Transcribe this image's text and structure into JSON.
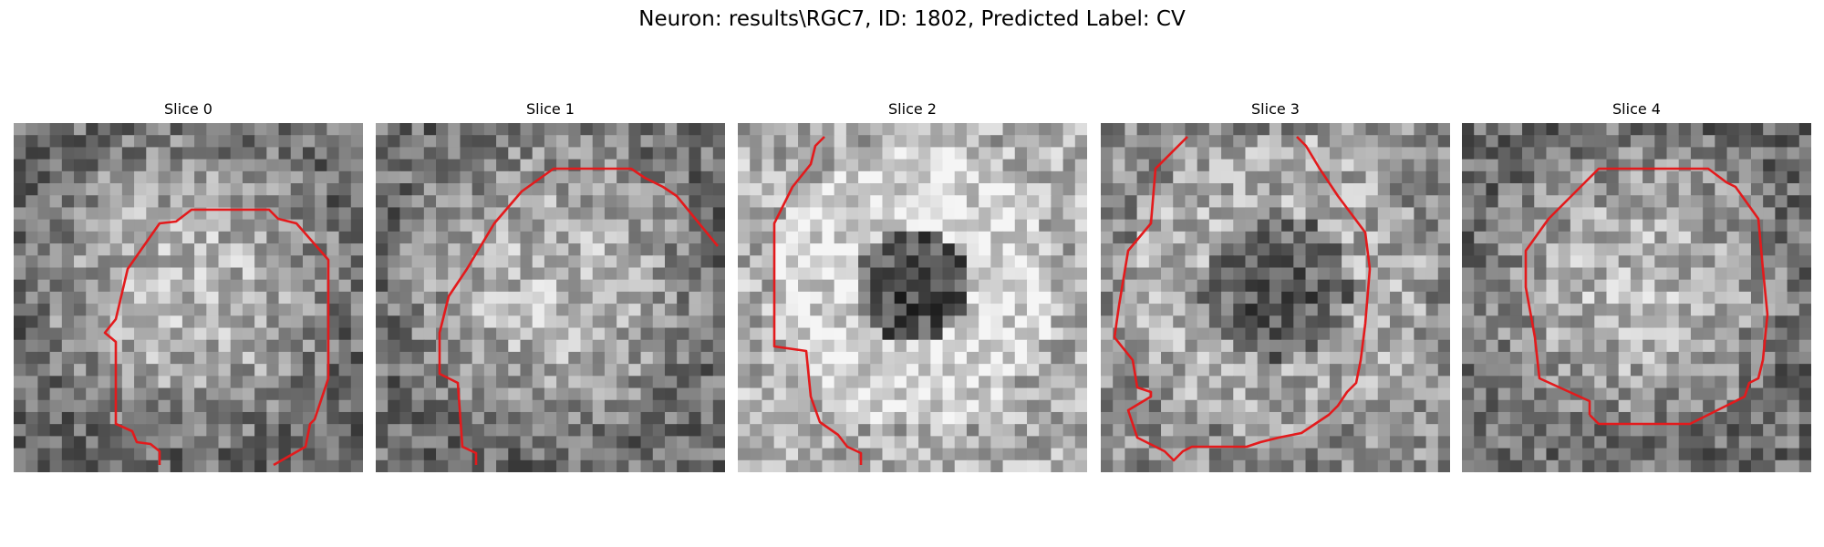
{
  "figure": {
    "title": "Neuron: results\\RGC7, ID: 1802, Predicted Label: CV",
    "contour_color": "#e31a1c"
  },
  "slices": [
    {
      "label": "Slice 0",
      "pattern": "bright-center"
    },
    {
      "label": "Slice 1",
      "pattern": "bright-center"
    },
    {
      "label": "Slice 2",
      "pattern": "bright-ring-dark-center"
    },
    {
      "label": "Slice 3",
      "pattern": "dark-center"
    },
    {
      "label": "Slice 4",
      "pattern": "bright-center"
    }
  ]
}
